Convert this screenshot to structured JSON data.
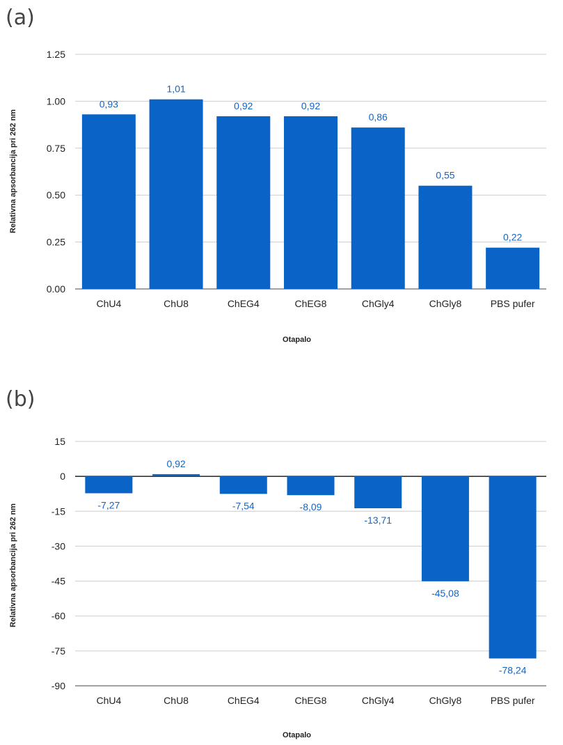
{
  "panels": {
    "a": {
      "tag": "(a)"
    },
    "b": {
      "tag": "(b)"
    }
  },
  "colors": {
    "bar": "#0a64c8",
    "label": "#1565c0",
    "grid": "#cccccc",
    "axis": "#444444"
  },
  "chart_data": [
    {
      "type": "bar",
      "panel": "(a)",
      "categories": [
        "ChU4",
        "ChU8",
        "ChEG4",
        "ChEG8",
        "ChGly4",
        "ChGly8",
        "PBS pufer"
      ],
      "values": [
        0.93,
        1.01,
        0.92,
        0.92,
        0.86,
        0.55,
        0.22
      ],
      "data_labels": [
        "0,93",
        "1,01",
        "0,92",
        "0,92",
        "0,86",
        "0,55",
        "0,22"
      ],
      "yticks": [
        "0.00",
        "0.25",
        "0.50",
        "0.75",
        "1.00",
        "1.25"
      ],
      "ylim": [
        0,
        1.25
      ],
      "xlabel": "Otapalo",
      "ylabel": "Relativna apsorbancija pri 262 nm",
      "grid": true,
      "legend": "none"
    },
    {
      "type": "bar",
      "panel": "(b)",
      "categories": [
        "ChU4",
        "ChU8",
        "ChEG4",
        "ChEG8",
        "ChGly4",
        "ChGly8",
        "PBS pufer"
      ],
      "values": [
        -7.27,
        0.92,
        -7.54,
        -8.09,
        -13.71,
        -45.08,
        -78.24
      ],
      "data_labels": [
        "-7,27",
        "0,92",
        "-7,54",
        "-8,09",
        "-13,71",
        "-45,08",
        "-78,24"
      ],
      "yticks": [
        "-90",
        "-75",
        "-60",
        "-45",
        "-30",
        "-15",
        "0",
        "15"
      ],
      "ylim": [
        -90,
        15
      ],
      "xlabel": "Otapalo",
      "ylabel": "Relativna apsorbancija pri 262 nm",
      "grid": true,
      "legend": "none"
    }
  ]
}
